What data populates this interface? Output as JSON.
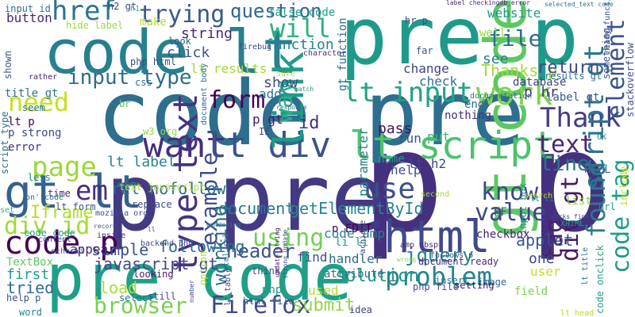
{
  "words": [
    {
      "text": "p p",
      "color": "#45307f"
    },
    {
      "text": "code pre",
      "color": "#2e6e8e"
    },
    {
      "text": "pre p",
      "color": "#1f9a8a"
    },
    {
      "text": "p pre",
      "color": "#443a83"
    },
    {
      "text": "pre code",
      "color": "#1f9f88"
    },
    {
      "text": "code lt",
      "color": "#27808e"
    },
    {
      "text": "gt code",
      "color": "#5cc863"
    },
    {
      "text": "lt script",
      "color": "#4cc26c"
    },
    {
      "text": "want",
      "color": "#472e7c"
    },
    {
      "text": "lt div",
      "color": "#3b528b"
    },
    {
      "text": "gt lt",
      "color": "#34618d"
    },
    {
      "text": "html",
      "color": "#3e4a89"
    },
    {
      "text": "problem",
      "color": "#25848e"
    },
    {
      "text": "Firefox",
      "color": "#3e4989"
    },
    {
      "text": "browser",
      "color": "#7ad151"
    },
    {
      "text": "code p",
      "color": "#440154"
    },
    {
      "text": "div id",
      "color": "#a2da37"
    },
    {
      "text": "em",
      "color": "#472d7b"
    },
    {
      "text": "page",
      "color": "#9bd93c"
    },
    {
      "text": "need",
      "color": "#c8e020"
    },
    {
      "text": "input type",
      "color": "#2f6c8e"
    },
    {
      "text": "href",
      "color": "#2a768e"
    },
    {
      "text": "form",
      "color": "#440154"
    },
    {
      "text": "link",
      "color": "#1e9b8a"
    },
    {
      "text": "will",
      "color": "#2db27d"
    },
    {
      "text": "lt input",
      "color": "#20a386"
    },
    {
      "text": "question",
      "color": "#31678e"
    },
    {
      "text": "trying",
      "color": "#38598c"
    },
    {
      "text": "file",
      "color": "#2f6b8e"
    },
    {
      "text": "work",
      "color": "#7fd34e"
    },
    {
      "text": "Thank",
      "color": "#433e85"
    },
    {
      "text": "text",
      "color": "#482576"
    },
    {
      "text": "line",
      "color": "#2c738e"
    },
    {
      "text": "know",
      "color": "#3f4788"
    },
    {
      "text": "value",
      "color": "#404588"
    },
    {
      "text": "found",
      "color": "#2a788e"
    },
    {
      "text": "tag",
      "color": "#482071"
    },
    {
      "text": "div gt",
      "color": "#48186a"
    },
    {
      "text": "code tag",
      "color": "#1e9c89"
    },
    {
      "text": "script gt",
      "color": "#2c728e"
    },
    {
      "text": "element",
      "color": "#3a548c"
    },
    {
      "text": "type text",
      "color": "#46337f"
    },
    {
      "text": "use",
      "color": "#3b518b"
    },
    {
      "text": "using",
      "color": "#73d056"
    },
    {
      "text": "way",
      "color": "#2ab07f"
    },
    {
      "text": "example",
      "color": "#3d4d8a"
    },
    {
      "text": "working",
      "color": "#2d708e"
    },
    {
      "text": "jquery",
      "color": "#26828e"
    },
    {
      "text": "header",
      "color": "#3c508b"
    },
    {
      "text": "solution",
      "color": "#1f958b"
    },
    {
      "text": "document",
      "color": "#2a768e"
    },
    {
      "text": "getElementById",
      "color": "#25848e"
    },
    {
      "text": "rel nofollow",
      "color": "#2c728e"
    },
    {
      "text": "lt label",
      "color": "#25838e"
    },
    {
      "text": "Iframe",
      "color": "#b5de2b"
    },
    {
      "text": "submit",
      "color": "#90d743"
    },
    {
      "text": "load",
      "color": "#a8db34"
    },
    {
      "text": "tried",
      "color": "#2e6e8e"
    },
    {
      "text": "first",
      "color": "#1f9e89"
    },
    {
      "text": "simple",
      "color": "#3b528b"
    },
    {
      "text": "javascript gt",
      "color": "#3f4889"
    },
    {
      "text": "following",
      "color": "#2e6d8e"
    },
    {
      "text": "see",
      "color": "#27808e"
    },
    {
      "text": "Thanks p",
      "color": "#a2da37"
    },
    {
      "text": "website",
      "color": "#1f988b"
    },
    {
      "text": "return",
      "color": "#3e4a89"
    },
    {
      "text": "label gt",
      "color": "#38598c"
    },
    {
      "text": "p hr",
      "color": "#46327e"
    },
    {
      "text": "string",
      "color": "#482878"
    },
    {
      "text": "click",
      "color": "#39568c"
    },
    {
      "text": "function",
      "color": "#26828e"
    },
    {
      "text": "show",
      "color": "#3e4c8a"
    },
    {
      "text": "add",
      "color": "#29798e"
    },
    {
      "text": "id",
      "color": "#472f7d"
    },
    {
      "text": "lt results",
      "color": "#a2da37"
    },
    {
      "text": "p gt",
      "color": "#48186a"
    },
    {
      "text": "gt function",
      "color": "#2d708e"
    },
    {
      "text": "parameter",
      "color": "#287d8e"
    },
    {
      "text": "pass",
      "color": "#471063"
    },
    {
      "text": "run",
      "color": "#3b528b"
    },
    {
      "text": "put",
      "color": "#38b977"
    },
    {
      "text": "help",
      "color": "#3d4d8a"
    },
    {
      "text": "name",
      "color": "#1fa188"
    },
    {
      "text": "change",
      "color": "#3f4788"
    },
    {
      "text": "check",
      "color": "#2c728e"
    },
    {
      "text": "end",
      "color": "#31688e"
    },
    {
      "text": "nothing",
      "color": "#46307e"
    },
    {
      "text": "documentation",
      "color": "#2b758e"
    },
    {
      "text": "database",
      "color": "#414487"
    },
    {
      "text": "list",
      "color": "#8bd646"
    },
    {
      "text": "HTML",
      "color": "#2e6f8e"
    },
    {
      "text": "input box",
      "color": "#21918c"
    },
    {
      "text": "checkbox",
      "color": "#482374"
    },
    {
      "text": "FF",
      "color": "#3a548c"
    },
    {
      "text": "applet",
      "color": "#39568c"
    },
    {
      "text": "one",
      "color": "#3e4989"
    },
    {
      "text": "user",
      "color": "#c2df23"
    },
    {
      "text": "p EDIT",
      "color": "#440154"
    },
    {
      "text": "li li",
      "color": "#1f9e89"
    },
    {
      "text": "find",
      "color": "#3e4c8a"
    },
    {
      "text": "attribute",
      "color": "#2c728e"
    },
    {
      "text": "code amp",
      "color": "#25838e"
    },
    {
      "text": "handler",
      "color": "#2e6d8e"
    },
    {
      "text": "used",
      "color": "#b0dd2f"
    },
    {
      "text": "html file",
      "color": "#31688e"
    },
    {
      "text": "lt h2",
      "color": "#3f4788"
    },
    {
      "text": "button",
      "color": "#482878"
    },
    {
      "text": "input id",
      "color": "#2e6d8e"
    },
    {
      "text": "title gt",
      "color": "#2c728e"
    },
    {
      "text": "lt p",
      "color": "#440154"
    },
    {
      "text": "p strong",
      "color": "#3f4889"
    },
    {
      "text": "error",
      "color": "#46337e"
    },
    {
      "text": "seem",
      "color": "#2c738e"
    },
    {
      "text": "less",
      "color": "#27808e"
    },
    {
      "text": "time",
      "color": "#482878"
    },
    {
      "text": "lt form",
      "color": "#35608d"
    },
    {
      "text": "code code",
      "color": "#20a386"
    },
    {
      "text": "TextBox",
      "color": "#5ec962"
    },
    {
      "text": "help p",
      "color": "#3b528b"
    },
    {
      "text": "word",
      "color": "#25848e"
    },
    {
      "text": "make",
      "color": "#b2dd2d"
    },
    {
      "text": "hide label",
      "color": "#9bd93c"
    },
    {
      "text": "look",
      "color": "#38598c"
    },
    {
      "text": "php html",
      "color": "#3e4a89"
    },
    {
      "text": "appear",
      "color": "#482374"
    },
    {
      "text": "w3 org",
      "color": "#90d743"
    },
    {
      "text": "text javascript",
      "color": "#b8de29"
    },
    {
      "text": "replace",
      "color": "#3f4889"
    },
    {
      "text": "looking",
      "color": "#48186a"
    },
    {
      "text": "still",
      "color": "#3e4989"
    },
    {
      "text": "select",
      "color": "#2c738e"
    },
    {
      "text": "script type",
      "color": "#2c728e"
    },
    {
      "text": "shown",
      "color": "#39568c"
    },
    {
      "text": "rather",
      "color": "#482475"
    },
    {
      "text": "IE",
      "color": "#3f4788"
    },
    {
      "text": "false code",
      "color": "#1fa188"
    },
    {
      "text": "character",
      "color": "#463480"
    },
    {
      "text": "sure",
      "color": "#b8de29"
    },
    {
      "text": "css",
      "color": "#2e6e8e"
    },
    {
      "text": "br",
      "color": "#56c667"
    },
    {
      "text": "document body",
      "color": "#2e6e8e"
    },
    {
      "text": "firebug",
      "color": "#3e4989"
    },
    {
      "text": "far",
      "color": "#39568c"
    },
    {
      "text": "well",
      "color": "#9dd93b"
    },
    {
      "text": "something",
      "color": "#3b528b"
    },
    {
      "text": "stackoverflow",
      "color": "#3c508b"
    },
    {
      "text": "include",
      "color": "#bddf26"
    },
    {
      "text": "second",
      "color": "#a0da39"
    },
    {
      "text": "insert",
      "color": "#29798e"
    },
    {
      "text": "document ready",
      "color": "#472d7b"
    },
    {
      "text": "image",
      "color": "#2f6c8e"
    },
    {
      "text": "field",
      "color": "#7ad151"
    },
    {
      "text": "think",
      "color": "#3e4c8a"
    },
    {
      "text": "idea",
      "color": "#414487"
    },
    {
      "text": "setting",
      "color": "#471164"
    },
    {
      "text": "code onclick",
      "color": "#20a386"
    },
    {
      "text": "lt title",
      "color": "#2c728e"
    },
    {
      "text": "url",
      "color": "#1f9a8a"
    },
    {
      "text": "search",
      "color": "#c5e021"
    },
    {
      "text": "option",
      "color": "#b5de2b"
    },
    {
      "text": "inside",
      "color": "#472a7a"
    },
    {
      "text": "content",
      "color": "#3e4989"
    },
    {
      "text": "echo li",
      "color": "#2e6d8e"
    },
    {
      "text": "set",
      "color": "#29af7f"
    },
    {
      "text": "php",
      "color": "#1f988b"
    },
    {
      "text": "mozilla org",
      "color": "#3b528b"
    },
    {
      "text": "OK",
      "color": "#25838e"
    },
    {
      "text": "XHTML",
      "color": "#1fa088"
    },
    {
      "text": "hr p",
      "color": "#3d4e8a"
    },
    {
      "text": "h2 gt",
      "color": "#3f4788"
    },
    {
      "text": "h1",
      "color": "#35b779"
    },
    {
      "text": "label checkingdb_error",
      "color": "#482677"
    },
    {
      "text": "selected_text code",
      "color": "#2c728e"
    },
    {
      "text": "results gt",
      "color": "#2d708e"
    },
    {
      "text": "ready function",
      "color": "#3e4a89"
    },
    {
      "text": "update string",
      "color": "#48186a"
    },
    {
      "text": "strong Update",
      "color": "#3b528b"
    },
    {
      "text": "works fine",
      "color": "#3e4989"
    },
    {
      "text": "backend php",
      "color": "#3f4788"
    },
    {
      "text": "wondering",
      "color": "#2c738e"
    },
    {
      "text": "response",
      "color": "#2e6f8e"
    },
    {
      "text": "match",
      "color": "#1f9a8a"
    },
    {
      "text": "on' code",
      "color": "#2c728e"
    },
    {
      "text": "lt table",
      "color": "#414487"
    },
    {
      "text": "amp nbsp",
      "color": "#482878"
    },
    {
      "text": "follows p",
      "color": "#3b528b"
    },
    {
      "text": "achieve",
      "color": "#3f4889"
    },
    {
      "text": "lt head",
      "color": "#b5de2b"
    },
    {
      "text": "number",
      "color": "#3e4c8a"
    },
    {
      "text": "record",
      "color": "#3a548c"
    },
    {
      "text": "html rel",
      "color": "#2d708e"
    },
    {
      "text": "php file",
      "color": "#3d4d8a"
    },
    {
      "text": "wrong",
      "color": "#8bd646"
    },
    {
      "text": "lt li",
      "color": "#25838e"
    },
    {
      "text": "ll",
      "color": "#3e4989"
    }
  ]
}
